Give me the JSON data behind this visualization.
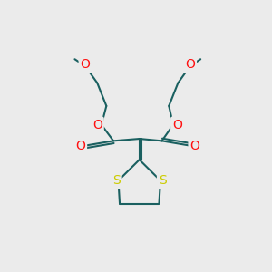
{
  "bg_color": "#ebebeb",
  "bond_color": "#1a6060",
  "o_color": "#ff1111",
  "s_color": "#cccc00",
  "line_width": 1.5,
  "font_size_atom": 10,
  "canvas_xlim": [
    0.0,
    300.0
  ],
  "canvas_ylim": [
    0.0,
    300.0
  ]
}
